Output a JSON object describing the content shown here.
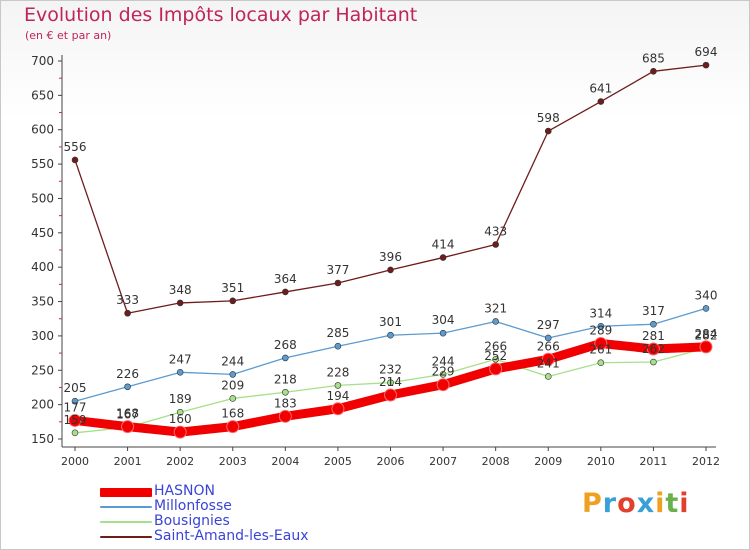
{
  "header": {
    "title": "Evolution des Impôts locaux par Habitant",
    "subtitle": "(en € et par an)"
  },
  "brand": {
    "name": "Proxiti",
    "letters": [
      "P",
      "r",
      "o",
      "x",
      "i",
      "t",
      "i"
    ],
    "colors": [
      "#f0a020",
      "#3aa0d8",
      "#e0402c",
      "#3aa0d8",
      "#f0a020",
      "#6ab04c",
      "#e0402c"
    ]
  },
  "chart_data": {
    "type": "line",
    "x": [
      "2000",
      "2001",
      "2002",
      "2003",
      "2004",
      "2005",
      "2006",
      "2007",
      "2008",
      "2009",
      "2010",
      "2011",
      "2012"
    ],
    "ylim": [
      150,
      700
    ],
    "yticks": [
      "150",
      "200",
      "250",
      "300",
      "350",
      "400",
      "450",
      "500",
      "550",
      "600",
      "650",
      "700"
    ],
    "grid": false,
    "series": [
      {
        "name": "Saint-Amand-les-Eaux",
        "color": "#6e1c1c",
        "values": [
          556,
          333,
          348,
          351,
          364,
          377,
          396,
          414,
          433,
          598,
          641,
          685,
          694
        ],
        "labels": [
          "556",
          "333",
          "348",
          "351",
          "364",
          "377",
          "396",
          "414",
          "433",
          "598",
          "641",
          "685",
          "694"
        ]
      },
      {
        "name": "Millonfosse",
        "color": "#5b9bd0",
        "values": [
          205,
          226,
          247,
          244,
          268,
          285,
          301,
          304,
          321,
          297,
          314,
          317,
          340
        ],
        "labels": [
          "205",
          "226",
          "247",
          "244",
          "268",
          "285",
          "301",
          "304",
          "321",
          "297",
          "314",
          "317",
          "340"
        ]
      },
      {
        "name": "Bousignies",
        "color": "#a6e08a",
        "values": [
          159,
          167,
          189,
          209,
          218,
          228,
          232,
          244,
          266,
          241,
          261,
          262,
          282
        ],
        "labels": [
          "159",
          "167",
          "189",
          "209",
          "218",
          "228",
          "232",
          "244",
          "266",
          "241",
          "261",
          "262",
          "282"
        ]
      },
      {
        "name": "HASNON",
        "color": "#f00000",
        "values": [
          177,
          168,
          160,
          168,
          183,
          194,
          214,
          229,
          252,
          266,
          289,
          281,
          284
        ],
        "labels": [
          "177",
          "168",
          "160",
          "168",
          "183",
          "194",
          "214",
          "229",
          "252",
          "266",
          "289",
          "281",
          "284"
        ]
      }
    ],
    "legend_order": [
      "HASNON",
      "Millonfosse",
      "Bousignies",
      "Saint-Amand-les-Eaux"
    ],
    "legend_position": "bottom-left"
  }
}
